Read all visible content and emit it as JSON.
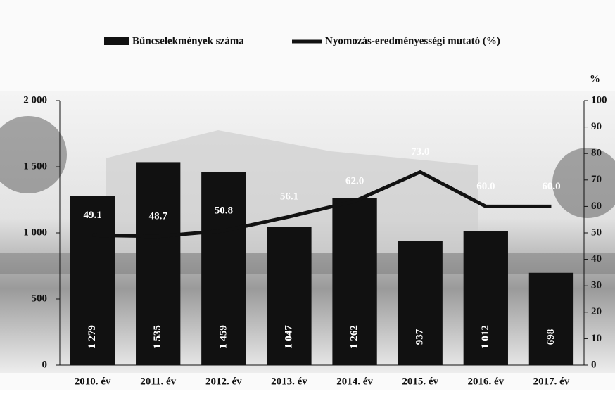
{
  "chart_data": {
    "type": "bar-line",
    "legend": "top",
    "categories": [
      "2010. év",
      "2011. év",
      "2012. év",
      "2013. év",
      "2014. év",
      "2015. év",
      "2016. év",
      "2017. év"
    ],
    "series": [
      {
        "name": "Bűncselekmények száma",
        "color": "#111111",
        "type": "bar",
        "values": [
          1279,
          1535,
          1459,
          1047,
          1262,
          937,
          1012,
          698
        ],
        "value_labels": [
          "1 279",
          "1 535",
          "1 459",
          "1 047",
          "1 262",
          "937",
          "1 012",
          "698"
        ]
      },
      {
        "name": "Nyomozás-eredményességi mutató (%)",
        "color": "#111111",
        "type": "line",
        "axis": "y2",
        "values": [
          49.1,
          48.7,
          50.8,
          56.1,
          62.0,
          73.0,
          60.0,
          60.0
        ],
        "value_labels": [
          "49.1",
          "48.7",
          "50.8",
          "56.1",
          "62.0",
          "73.0",
          "60.0",
          "60.0"
        ]
      }
    ],
    "ylim": [
      0,
      2000
    ],
    "yticks": [
      0,
      500,
      {
        "value": 1000,
        "label": "1 000"
      },
      {
        "value": 1500,
        "label": "1 500"
      },
      {
        "value": 2000,
        "label": "2 000"
      }
    ],
    "y2label": "%",
    "y2lim": [
      0,
      100
    ],
    "y2ticks": [
      0,
      10,
      20,
      30,
      40,
      50,
      60,
      70,
      80,
      90,
      100
    ]
  }
}
